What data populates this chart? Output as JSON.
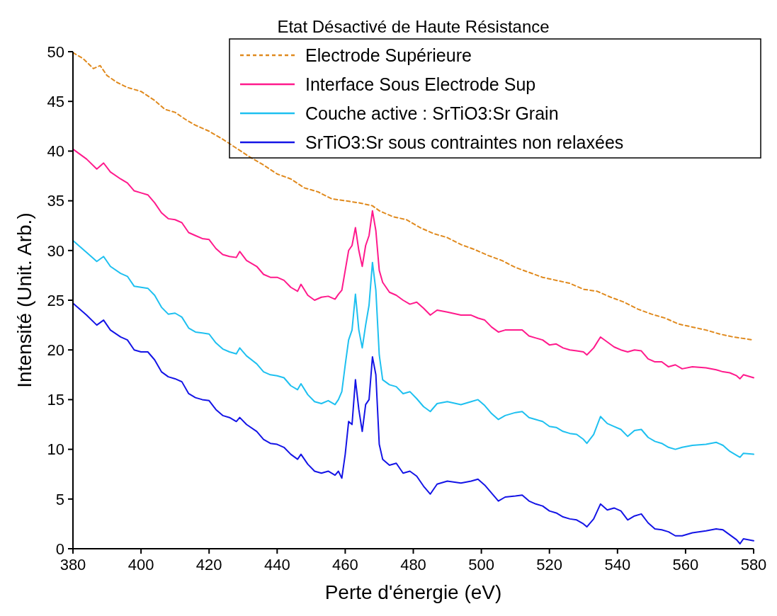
{
  "chart_data": {
    "type": "line",
    "title": "Etat Désactivé de Haute Résistance",
    "xlabel": "Perte d'énergie (eV)",
    "ylabel": "Intensité (Unit. Arb.)",
    "xlim": [
      380,
      580
    ],
    "ylim": [
      0,
      50
    ],
    "xticks": [
      380,
      400,
      420,
      440,
      460,
      480,
      500,
      520,
      540,
      560,
      580
    ],
    "yticks": [
      0,
      5,
      10,
      15,
      20,
      25,
      30,
      35,
      40,
      45,
      50
    ],
    "grid": false,
    "legend": "top right",
    "series": [
      {
        "name": "Electrode Supérieure",
        "color": "#e08a1e",
        "line_style": "dashed",
        "x": [
          380,
          383,
          386,
          388,
          390,
          393,
          396,
          400,
          404,
          407,
          410,
          413,
          416,
          420,
          424,
          428,
          432,
          436,
          440,
          444,
          448,
          452,
          456,
          460,
          464,
          468,
          470,
          474,
          478,
          482,
          486,
          490,
          494,
          498,
          502,
          506,
          510,
          514,
          518,
          522,
          526,
          530,
          534,
          538,
          542,
          546,
          550,
          554,
          558,
          562,
          566,
          570,
          574,
          578,
          580
        ],
        "values": [
          49.9,
          49.3,
          48.3,
          48.6,
          47.6,
          46.9,
          46.4,
          46.0,
          45.1,
          44.2,
          43.9,
          43.2,
          42.6,
          42.0,
          41.2,
          40.3,
          39.4,
          38.6,
          37.7,
          37.2,
          36.3,
          35.9,
          35.2,
          35.0,
          34.8,
          34.5,
          34.0,
          33.4,
          33.1,
          32.3,
          31.7,
          31.3,
          30.6,
          30.1,
          29.5,
          29.0,
          28.3,
          27.8,
          27.3,
          27.0,
          26.7,
          26.1,
          25.9,
          25.3,
          24.8,
          24.1,
          23.6,
          23.2,
          22.6,
          22.3,
          22.0,
          21.6,
          21.3,
          21.1,
          21.0
        ]
      },
      {
        "name": "Interface Sous Electrode Sup",
        "color": "#ff1a8c",
        "line_style": "solid",
        "x": [
          380,
          384,
          387,
          389,
          391,
          394,
          396,
          398,
          400,
          402,
          404,
          406,
          408,
          410,
          412,
          414,
          416,
          418,
          420,
          422,
          424,
          426,
          428,
          429,
          431,
          434,
          436,
          438,
          440,
          442,
          444,
          446,
          447,
          449,
          451,
          453,
          455,
          457,
          458,
          459,
          460,
          461,
          462,
          463,
          464,
          465,
          466,
          467,
          468,
          469,
          470,
          471,
          473,
          475,
          477,
          479,
          481,
          483,
          485,
          487,
          490,
          494,
          497,
          499,
          501,
          503,
          505,
          507,
          510,
          512,
          514,
          516,
          518,
          520,
          522,
          524,
          526,
          528,
          530,
          531,
          533,
          535,
          537,
          539,
          541,
          543,
          545,
          547,
          549,
          551,
          553,
          555,
          557,
          559,
          562,
          566,
          569,
          571,
          573,
          575,
          576,
          577,
          580
        ],
        "values": [
          40.2,
          39.2,
          38.2,
          38.8,
          37.9,
          37.2,
          36.8,
          36.0,
          35.8,
          35.6,
          34.8,
          33.8,
          33.2,
          33.1,
          32.8,
          31.8,
          31.5,
          31.2,
          31.1,
          30.2,
          29.6,
          29.4,
          29.3,
          29.9,
          29.0,
          28.4,
          27.6,
          27.3,
          27.3,
          27.0,
          26.3,
          25.9,
          26.6,
          25.5,
          25.0,
          25.3,
          25.4,
          25.1,
          25.6,
          26.0,
          28.0,
          30.0,
          30.5,
          32.3,
          30.0,
          28.4,
          30.5,
          31.5,
          34.0,
          32.0,
          28.0,
          26.8,
          25.8,
          25.5,
          25.0,
          24.6,
          24.8,
          24.2,
          23.5,
          24.0,
          23.8,
          23.5,
          23.5,
          23.2,
          23.0,
          22.3,
          21.8,
          22.0,
          22.0,
          22.0,
          21.4,
          21.2,
          21.0,
          20.5,
          20.6,
          20.2,
          20.0,
          19.9,
          19.8,
          19.5,
          20.2,
          21.3,
          20.8,
          20.3,
          20.0,
          19.8,
          20.0,
          19.9,
          19.1,
          18.8,
          18.8,
          18.3,
          18.5,
          18.1,
          18.3,
          18.2,
          18.0,
          17.8,
          17.7,
          17.4,
          17.1,
          17.5,
          17.2
        ]
      },
      {
        "name": "Couche active : SrTiO3:Sr Grain",
        "color": "#1ec0f0",
        "line_style": "solid",
        "x": [
          380,
          384,
          387,
          389,
          391,
          394,
          396,
          398,
          400,
          402,
          404,
          406,
          408,
          410,
          412,
          414,
          416,
          418,
          420,
          422,
          424,
          426,
          428,
          429,
          431,
          434,
          436,
          438,
          440,
          442,
          444,
          446,
          447,
          449,
          451,
          453,
          455,
          457,
          458,
          459,
          460,
          461,
          462,
          463,
          464,
          465,
          466,
          467,
          468,
          469,
          470,
          471,
          473,
          475,
          477,
          479,
          481,
          483,
          485,
          487,
          490,
          494,
          497,
          499,
          501,
          503,
          505,
          507,
          510,
          512,
          514,
          516,
          518,
          520,
          522,
          524,
          526,
          528,
          530,
          531,
          533,
          535,
          537,
          539,
          541,
          543,
          545,
          547,
          549,
          551,
          553,
          555,
          557,
          559,
          562,
          566,
          569,
          571,
          573,
          575,
          576,
          577,
          580
        ],
        "values": [
          31.0,
          29.8,
          28.9,
          29.4,
          28.4,
          27.7,
          27.4,
          26.4,
          26.3,
          26.2,
          25.5,
          24.3,
          23.6,
          23.7,
          23.3,
          22.2,
          21.8,
          21.7,
          21.6,
          20.7,
          20.1,
          19.8,
          19.6,
          20.2,
          19.4,
          18.6,
          17.8,
          17.5,
          17.4,
          17.2,
          16.4,
          16.0,
          16.6,
          15.5,
          14.8,
          14.6,
          14.9,
          14.5,
          15.0,
          15.8,
          18.5,
          21.0,
          22.0,
          25.6,
          22.0,
          20.2,
          22.5,
          24.5,
          28.8,
          26.0,
          19.5,
          17.0,
          16.5,
          16.3,
          15.6,
          15.8,
          15.1,
          14.3,
          13.8,
          14.6,
          14.8,
          14.5,
          14.8,
          15.0,
          14.4,
          13.6,
          13.0,
          13.4,
          13.7,
          13.8,
          13.2,
          13.0,
          12.8,
          12.3,
          12.2,
          11.8,
          11.6,
          11.5,
          11.0,
          10.6,
          11.5,
          13.3,
          12.6,
          12.3,
          12.0,
          11.3,
          11.9,
          12.0,
          11.2,
          10.8,
          10.6,
          10.2,
          10.0,
          10.2,
          10.4,
          10.5,
          10.7,
          10.4,
          9.8,
          9.4,
          9.2,
          9.6,
          9.5
        ]
      },
      {
        "name": "SrTiO3:Sr sous contraintes non relaxées",
        "color": "#1414e6",
        "line_style": "solid",
        "x": [
          380,
          384,
          387,
          389,
          391,
          394,
          396,
          398,
          400,
          402,
          404,
          406,
          408,
          410,
          412,
          414,
          416,
          418,
          420,
          422,
          424,
          426,
          428,
          429,
          431,
          434,
          436,
          438,
          440,
          442,
          444,
          446,
          447,
          449,
          451,
          453,
          455,
          457,
          458,
          459,
          460,
          461,
          462,
          463,
          464,
          465,
          466,
          467,
          468,
          469,
          470,
          471,
          473,
          475,
          477,
          479,
          481,
          483,
          485,
          487,
          490,
          494,
          497,
          499,
          501,
          503,
          505,
          507,
          510,
          512,
          514,
          516,
          518,
          520,
          522,
          524,
          526,
          528,
          530,
          531,
          533,
          535,
          537,
          539,
          541,
          543,
          545,
          547,
          549,
          551,
          553,
          555,
          557,
          559,
          562,
          566,
          569,
          571,
          573,
          575,
          576,
          577,
          580
        ],
        "values": [
          24.7,
          23.5,
          22.5,
          23.0,
          22.0,
          21.3,
          21.0,
          20.0,
          19.8,
          19.8,
          19.0,
          17.8,
          17.3,
          17.1,
          16.8,
          15.6,
          15.2,
          15.0,
          14.9,
          14.0,
          13.4,
          13.2,
          12.8,
          13.2,
          12.5,
          11.8,
          11.0,
          10.6,
          10.5,
          10.2,
          9.5,
          9.0,
          9.5,
          8.5,
          7.8,
          7.6,
          7.8,
          7.4,
          7.8,
          7.1,
          9.5,
          12.8,
          12.5,
          17.0,
          14.0,
          11.8,
          14.5,
          15.0,
          19.3,
          17.5,
          10.5,
          9.0,
          8.4,
          8.6,
          7.6,
          7.8,
          7.3,
          6.3,
          5.5,
          6.5,
          6.8,
          6.6,
          6.8,
          7.0,
          6.4,
          5.6,
          4.8,
          5.2,
          5.3,
          5.4,
          4.8,
          4.5,
          4.3,
          3.8,
          3.6,
          3.2,
          3.0,
          2.9,
          2.5,
          2.2,
          3.0,
          4.5,
          3.9,
          4.1,
          3.8,
          2.9,
          3.3,
          3.5,
          2.6,
          2.0,
          1.9,
          1.7,
          1.3,
          1.3,
          1.6,
          1.8,
          2.0,
          1.9,
          1.4,
          0.9,
          0.5,
          1.0,
          0.8
        ]
      }
    ]
  }
}
